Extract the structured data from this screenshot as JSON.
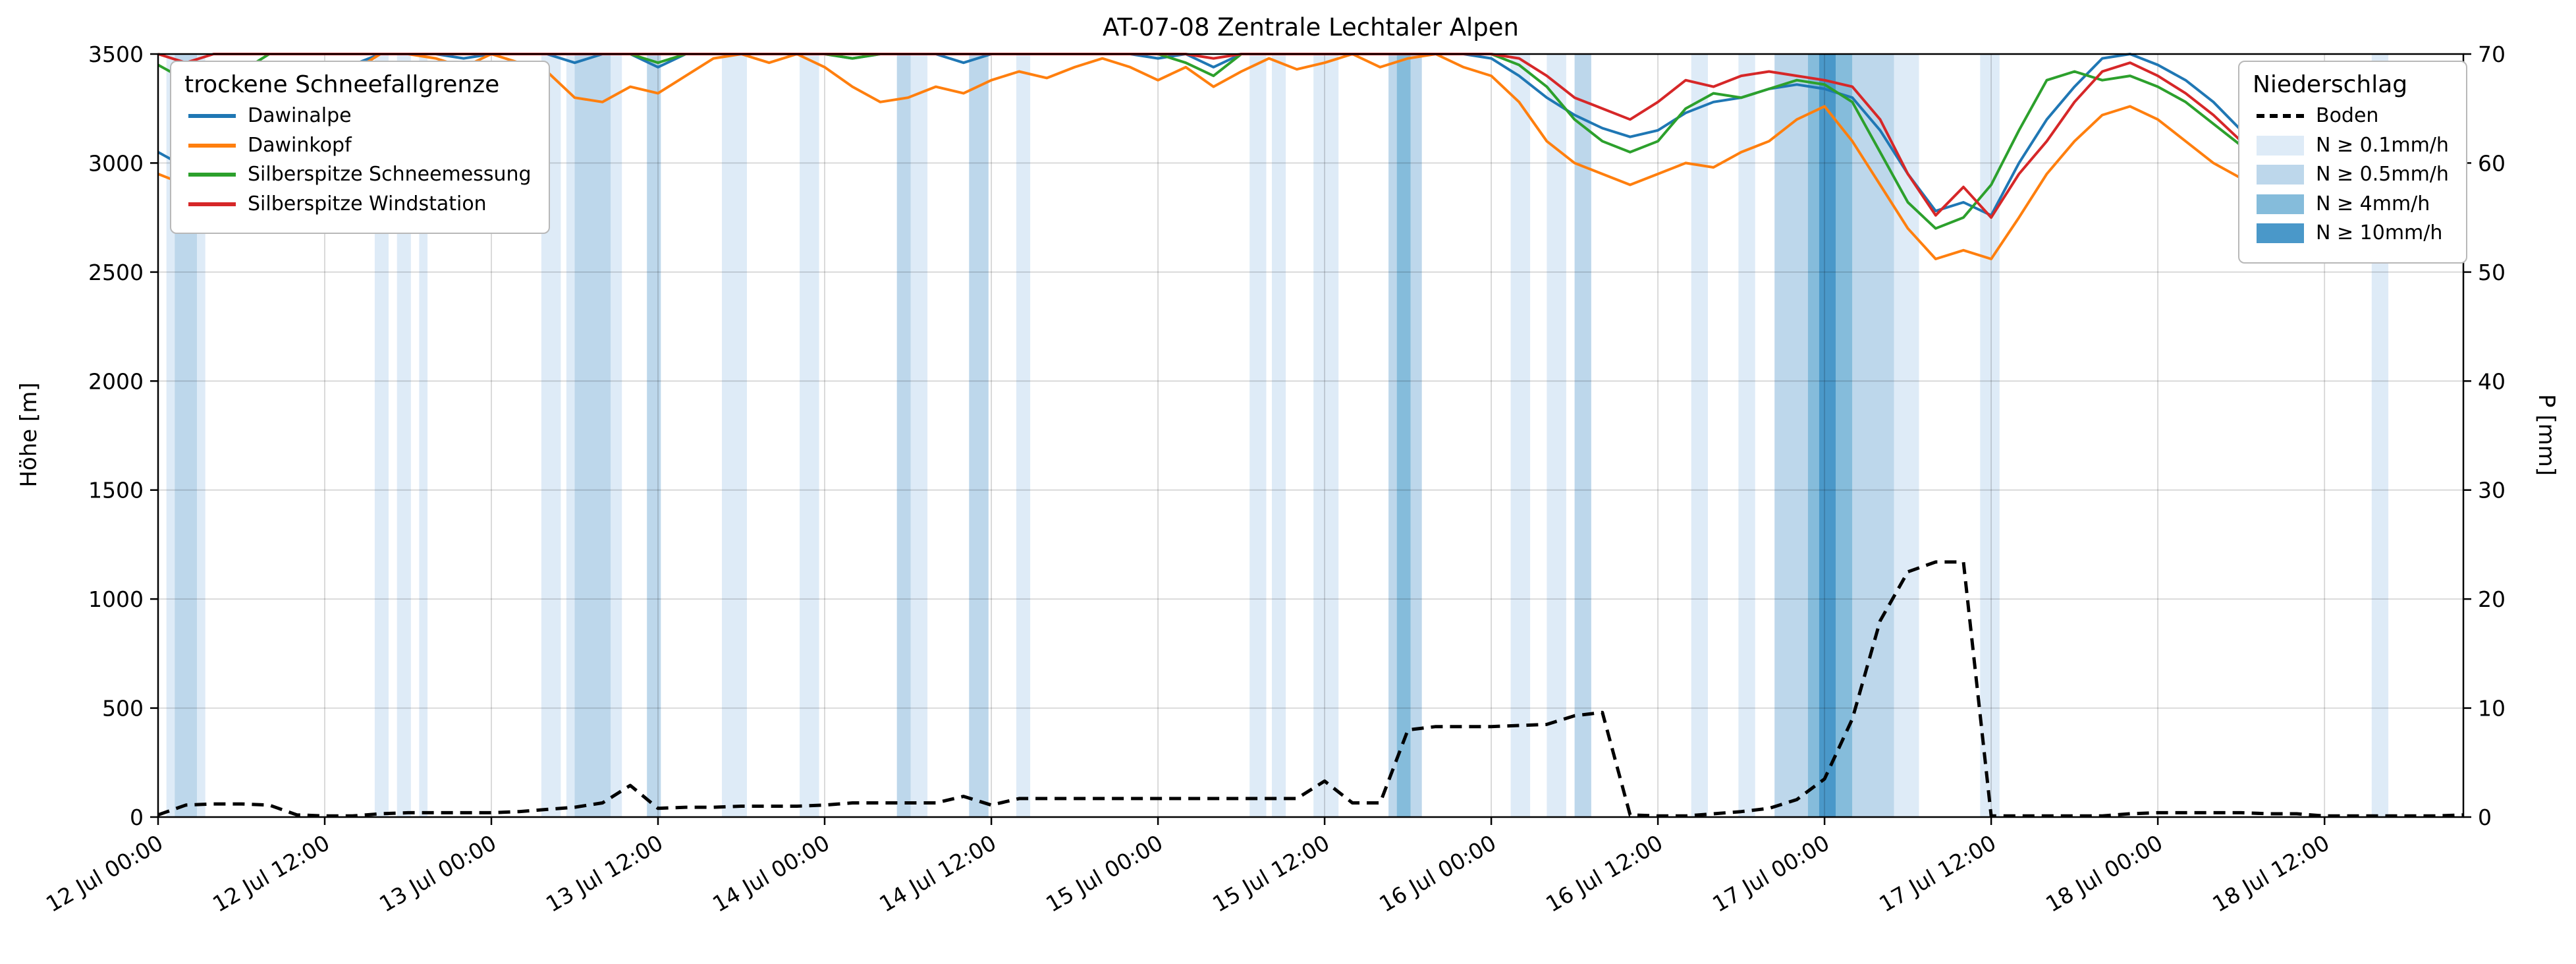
{
  "title": "AT-07-08 Zentrale Lechtaler Alpen",
  "axes": {
    "y_left_label": "Höhe [m]",
    "y_right_label": "P [mm]"
  },
  "legend_snowline": {
    "title": "trockene Schneefallgrenze",
    "items": [
      "Dawinalpe",
      "Dawinkopf",
      "Silberspitze Schneemessung",
      "Silberspitze Windstation"
    ]
  },
  "legend_precip": {
    "title": "Niederschlag",
    "items": [
      "Boden",
      "N ≥ 0.1mm/h",
      "N ≥ 0.5mm/h",
      "N ≥ 4mm/h",
      "N ≥ 10mm/h"
    ]
  },
  "chart_data": {
    "type": "line",
    "title": "AT-07-08 Zentrale Lechtaler Alpen",
    "x_unit": "hours since 12 Jul 00:00",
    "x_range": [
      0,
      166
    ],
    "x_tick_hours": [
      0,
      12,
      24,
      36,
      48,
      60,
      72,
      84,
      96,
      108,
      120,
      132,
      144,
      156
    ],
    "x_tick_labels": [
      "12 Jul 00:00",
      "12 Jul 12:00",
      "13 Jul 00:00",
      "13 Jul 12:00",
      "14 Jul 00:00",
      "14 Jul 12:00",
      "15 Jul 00:00",
      "15 Jul 12:00",
      "16 Jul 00:00",
      "16 Jul 12:00",
      "17 Jul 00:00",
      "17 Jul 12:00",
      "18 Jul 00:00",
      "18 Jul 12:00"
    ],
    "y_left": {
      "label": "Höhe [m]",
      "range": [
        0,
        3500
      ],
      "ticks": [
        0,
        500,
        1000,
        1500,
        2000,
        2500,
        3000,
        3500
      ]
    },
    "y_right": {
      "label": "P [mm]",
      "range": [
        0,
        70
      ],
      "ticks": [
        0,
        10,
        20,
        30,
        40,
        50,
        60,
        70
      ]
    },
    "grid": true,
    "legend_positions": [
      "upper left",
      "upper right"
    ],
    "hours": [
      0,
      2,
      4,
      6,
      8,
      10,
      12,
      14,
      16,
      18,
      20,
      22,
      24,
      26,
      28,
      30,
      32,
      34,
      36,
      38,
      40,
      42,
      44,
      46,
      48,
      50,
      52,
      54,
      56,
      58,
      60,
      62,
      64,
      66,
      68,
      70,
      72,
      74,
      76,
      78,
      80,
      82,
      84,
      86,
      88,
      90,
      92,
      94,
      96,
      98,
      100,
      102,
      104,
      106,
      108,
      110,
      112,
      114,
      116,
      118,
      120,
      122,
      124,
      126,
      128,
      130,
      132,
      134,
      136,
      138,
      140,
      142,
      144,
      146,
      148,
      150,
      152,
      154,
      156,
      158,
      160,
      162,
      164,
      166
    ],
    "series": [
      {
        "id": "dawinalpe",
        "name": "Dawinalpe",
        "color": "#1f77b4",
        "axis": "left",
        "dashed": false,
        "values": [
          3050,
          2980,
          3060,
          3120,
          3200,
          3280,
          3380,
          3450,
          3500,
          3500,
          3500,
          3480,
          3500,
          3500,
          3500,
          3460,
          3500,
          3500,
          3440,
          3500,
          3500,
          3500,
          3500,
          3500,
          3500,
          3480,
          3500,
          3500,
          3500,
          3460,
          3500,
          3500,
          3500,
          3500,
          3500,
          3500,
          3480,
          3500,
          3440,
          3500,
          3500,
          3500,
          3500,
          3500,
          3500,
          3500,
          3500,
          3500,
          3480,
          3400,
          3300,
          3220,
          3160,
          3120,
          3150,
          3230,
          3280,
          3300,
          3340,
          3360,
          3340,
          3300,
          3150,
          2950,
          2780,
          2820,
          2760,
          3000,
          3200,
          3350,
          3480,
          3500,
          3450,
          3380,
          3280,
          3150,
          3050,
          3020,
          3000,
          3050,
          3000,
          3150,
          3300,
          3400
        ]
      },
      {
        "id": "dawinkopf",
        "name": "Dawinkopf",
        "color": "#ff7f0e",
        "axis": "left",
        "dashed": false,
        "values": [
          2950,
          2900,
          2980,
          3050,
          3150,
          3250,
          3350,
          3420,
          3500,
          3500,
          3480,
          3440,
          3500,
          3460,
          3420,
          3300,
          3280,
          3350,
          3320,
          3400,
          3480,
          3500,
          3460,
          3500,
          3440,
          3350,
          3280,
          3300,
          3350,
          3320,
          3380,
          3420,
          3390,
          3440,
          3480,
          3440,
          3380,
          3440,
          3350,
          3420,
          3480,
          3430,
          3460,
          3500,
          3440,
          3480,
          3500,
          3440,
          3400,
          3280,
          3100,
          3000,
          2950,
          2900,
          2950,
          3000,
          2980,
          3050,
          3100,
          3200,
          3260,
          3100,
          2900,
          2700,
          2560,
          2600,
          2560,
          2750,
          2950,
          3100,
          3220,
          3260,
          3200,
          3100,
          3000,
          2930,
          2980,
          2950,
          2900,
          2950,
          2870,
          3000,
          3150,
          3280
        ]
      },
      {
        "id": "silberspitze-schneemessung",
        "name": "Silberspitze Schneemessung",
        "color": "#2ca02c",
        "axis": "left",
        "dashed": false,
        "values": [
          3450,
          3380,
          3300,
          3420,
          3500,
          3500,
          3500,
          3500,
          3500,
          3500,
          3500,
          3500,
          3500,
          3500,
          3500,
          3500,
          3500,
          3500,
          3460,
          3500,
          3500,
          3500,
          3500,
          3500,
          3500,
          3480,
          3500,
          3500,
          3500,
          3500,
          3500,
          3500,
          3500,
          3500,
          3500,
          3500,
          3500,
          3460,
          3400,
          3500,
          3500,
          3500,
          3500,
          3500,
          3500,
          3500,
          3500,
          3500,
          3500,
          3450,
          3350,
          3200,
          3100,
          3050,
          3100,
          3250,
          3320,
          3300,
          3340,
          3380,
          3360,
          3280,
          3050,
          2820,
          2700,
          2750,
          2900,
          3150,
          3380,
          3420,
          3380,
          3400,
          3350,
          3280,
          3180,
          3080,
          3050,
          3100,
          3000,
          2950,
          2900,
          3050,
          3200,
          3300
        ]
      },
      {
        "id": "silberspitze-windstation",
        "name": "Silberspitze Windstation",
        "color": "#d62728",
        "axis": "left",
        "dashed": false,
        "values": [
          3500,
          3460,
          3500,
          3500,
          3500,
          3500,
          3500,
          3500,
          3500,
          3500,
          3500,
          3500,
          3500,
          3500,
          3500,
          3500,
          3500,
          3500,
          3500,
          3500,
          3500,
          3500,
          3500,
          3500,
          3500,
          3500,
          3500,
          3500,
          3500,
          3500,
          3500,
          3500,
          3500,
          3500,
          3500,
          3500,
          3500,
          3500,
          3480,
          3500,
          3500,
          3500,
          3500,
          3500,
          3500,
          3500,
          3500,
          3500,
          3500,
          3480,
          3400,
          3300,
          3250,
          3200,
          3280,
          3380,
          3350,
          3400,
          3420,
          3400,
          3380,
          3350,
          3200,
          2950,
          2760,
          2890,
          2750,
          2950,
          3100,
          3280,
          3420,
          3460,
          3400,
          3320,
          3220,
          3100,
          3040,
          3080,
          3020,
          3100,
          3050,
          3200,
          3420,
          3380
        ]
      },
      {
        "id": "boden",
        "name": "Boden",
        "color": "#000000",
        "axis": "right",
        "dashed": true,
        "values": [
          0.2,
          1.1,
          1.2,
          1.2,
          1.1,
          0.2,
          0.1,
          0.1,
          0.3,
          0.4,
          0.4,
          0.4,
          0.4,
          0.5,
          0.7,
          0.9,
          1.3,
          2.9,
          0.8,
          0.9,
          0.9,
          1.0,
          1.0,
          1.0,
          1.1,
          1.3,
          1.3,
          1.3,
          1.3,
          1.9,
          1.1,
          1.7,
          1.7,
          1.7,
          1.7,
          1.7,
          1.7,
          1.7,
          1.7,
          1.7,
          1.7,
          1.7,
          3.3,
          1.3,
          1.3,
          8.0,
          8.3,
          8.3,
          8.3,
          8.4,
          8.5,
          9.3,
          9.6,
          0.2,
          0.1,
          0.1,
          0.3,
          0.5,
          0.8,
          1.6,
          3.5,
          9.0,
          18.0,
          22.5,
          23.4,
          23.4,
          0.1,
          0.1,
          0.1,
          0.1,
          0.1,
          0.3,
          0.4,
          0.4,
          0.4,
          0.4,
          0.3,
          0.3,
          0.1,
          0.1,
          0.1,
          0.1,
          0.1,
          0.2
        ]
      }
    ],
    "precip_bands": {
      "levels": [
        {
          "label": "N ≥ 0.1mm/h",
          "color": "#deebf7"
        },
        {
          "label": "N ≥ 0.5mm/h",
          "color": "#bdd7eb"
        },
        {
          "label": "N ≥ 4mm/h",
          "color": "#85bcdb"
        },
        {
          "label": "N ≥ 10mm/h",
          "color": "#4a98c9"
        }
      ],
      "spans": [
        [
          0.6,
          1.2,
          1
        ],
        [
          1.2,
          2.8,
          2
        ],
        [
          2.8,
          3.4,
          1
        ],
        [
          15.6,
          16.6,
          1
        ],
        [
          17.2,
          18.2,
          1
        ],
        [
          18.8,
          19.4,
          1
        ],
        [
          27.6,
          29.0,
          1
        ],
        [
          29.4,
          30.0,
          1
        ],
        [
          30.0,
          32.6,
          2
        ],
        [
          32.6,
          33.4,
          1
        ],
        [
          35.2,
          36.2,
          2
        ],
        [
          40.6,
          42.4,
          1
        ],
        [
          46.2,
          47.6,
          1
        ],
        [
          53.2,
          54.2,
          2
        ],
        [
          54.2,
          55.4,
          1
        ],
        [
          58.4,
          59.8,
          2
        ],
        [
          61.8,
          62.8,
          1
        ],
        [
          78.6,
          79.8,
          1
        ],
        [
          80.2,
          81.2,
          1
        ],
        [
          83.2,
          85.0,
          1
        ],
        [
          88.6,
          89.2,
          2
        ],
        [
          89.2,
          90.2,
          3
        ],
        [
          90.2,
          91.0,
          2
        ],
        [
          97.4,
          98.8,
          1
        ],
        [
          100.0,
          101.4,
          1
        ],
        [
          102.0,
          103.2,
          2
        ],
        [
          110.4,
          111.6,
          1
        ],
        [
          113.8,
          115.0,
          1
        ],
        [
          116.4,
          118.8,
          2
        ],
        [
          118.8,
          119.6,
          3
        ],
        [
          119.6,
          120.8,
          4
        ],
        [
          120.8,
          122.0,
          3
        ],
        [
          122.0,
          125.0,
          2
        ],
        [
          125.0,
          126.8,
          1
        ],
        [
          131.2,
          132.6,
          1
        ],
        [
          159.4,
          160.6,
          1
        ]
      ]
    }
  }
}
